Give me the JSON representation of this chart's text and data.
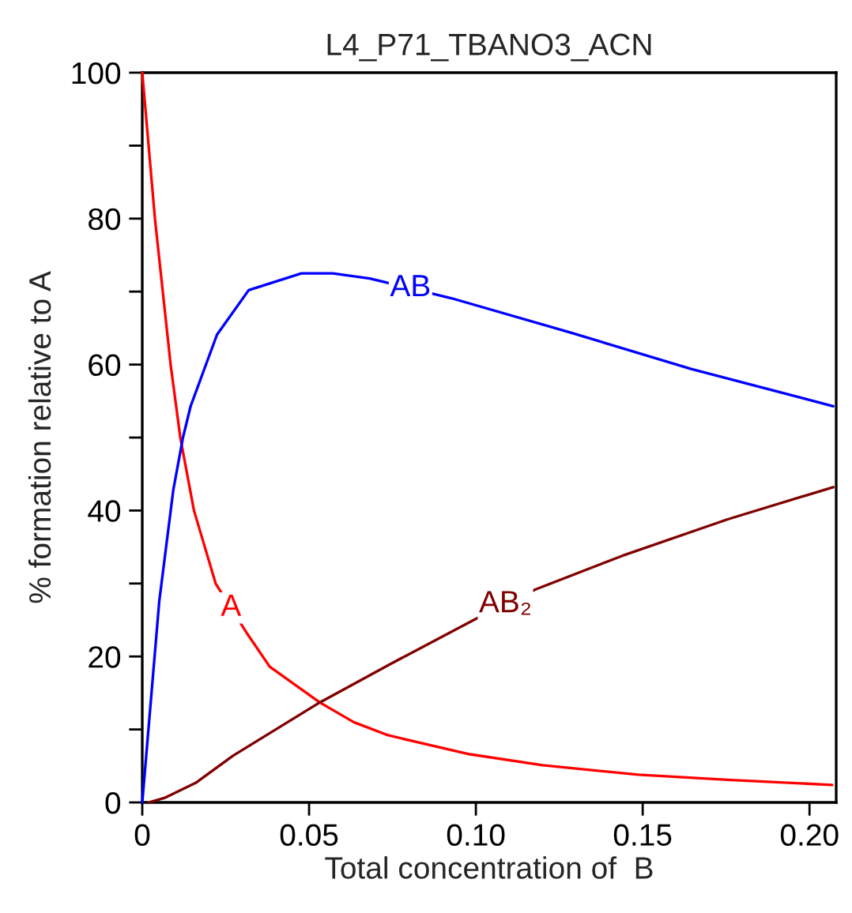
{
  "chart_data": {
    "type": "line",
    "title": "L4_P71_TBANO3_ACN",
    "xlabel": "Total concentration of  B",
    "ylabel": "% formation relative to A",
    "xlim": [
      0,
      0.208
    ],
    "ylim": [
      0,
      100
    ],
    "xticks": [
      0,
      0.05,
      {
        "value": 0.1,
        "label": "0.10"
      },
      0.15,
      {
        "value": 0.2,
        "label": "0.20"
      }
    ],
    "yticks": [
      0,
      {
        "value": 10,
        "label": null
      },
      20,
      {
        "value": 30,
        "label": null
      },
      40,
      {
        "value": 50,
        "label": null
      },
      60,
      {
        "value": 70,
        "label": null
      },
      80,
      {
        "value": 90,
        "label": null
      },
      100
    ],
    "grid": false,
    "legend": false,
    "marker": "none",
    "line_style": "solid",
    "series": [
      {
        "name": "A",
        "color": "#ff0000",
        "x": [
          0,
          0.0038,
          0.0085,
          0.0114,
          0.0155,
          0.022,
          0.0312,
          0.0382,
          0.0532,
          0.0634,
          0.0737,
          0.0982,
          0.12,
          0.1487,
          0.1755,
          0.2068
        ],
        "values": [
          100,
          80,
          60,
          50,
          40,
          30,
          23.3,
          18.6,
          13.7,
          11.0,
          9.2,
          6.6,
          5.1,
          3.8,
          3.1,
          2.4
        ]
      },
      {
        "name": "AB",
        "color": "#0000ff",
        "x": [
          0,
          0.0051,
          0.0093,
          0.0122,
          0.0145,
          0.0224,
          0.0319,
          0.0477,
          0.0571,
          0.0682,
          0.0926,
          0.1282,
          0.1645,
          0.2071
        ],
        "values": [
          0,
          27.6,
          42.8,
          50,
          54.3,
          64.1,
          70.2,
          72.5,
          72.5,
          71.8,
          69.1,
          64.4,
          59.4,
          54.3
        ]
      },
      {
        "name": "AB₂",
        "color": "#800000",
        "x": [
          0.0019,
          0.0066,
          0.0161,
          0.0272,
          0.0532,
          0.0745,
          0.0998,
          0.1179,
          0.1439,
          0.1755,
          0.2071
        ],
        "values": [
          0,
          0.6,
          2.7,
          6.4,
          13.7,
          19.0,
          25.1,
          29.2,
          33.8,
          38.8,
          43.2
        ]
      }
    ]
  }
}
